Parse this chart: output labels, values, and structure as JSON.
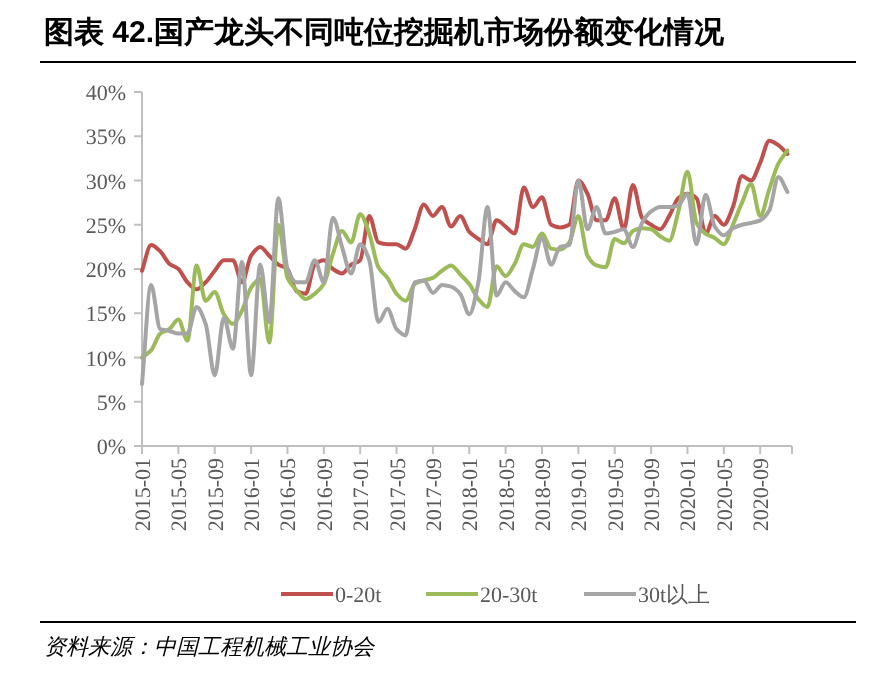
{
  "chart_data": {
    "type": "line",
    "title": "图表 42.国产龙头不同吨位挖掘机市场份额变化情况",
    "categories": [
      "2015-01",
      null,
      null,
      null,
      "2015-05",
      null,
      null,
      null,
      "2015-09",
      null,
      null,
      null,
      "2016-01",
      null,
      null,
      null,
      "2016-05",
      null,
      null,
      null,
      "2016-09",
      null,
      null,
      null,
      "2017-01",
      null,
      null,
      null,
      "2017-05",
      null,
      null,
      null,
      "2017-09",
      null,
      null,
      null,
      "2018-01",
      null,
      null,
      null,
      "2018-05",
      null,
      null,
      null,
      "2018-09",
      null,
      null,
      null,
      "2019-01",
      null,
      null,
      null,
      "2019-05",
      null,
      null,
      null,
      "2019-09",
      null,
      null,
      null,
      "2020-01",
      null,
      null,
      null,
      "2020-05",
      null,
      null,
      null,
      "2020-09",
      null,
      null,
      null
    ],
    "series": [
      {
        "name": "0-20t",
        "color": "#c0504d",
        "values": [
          19.8,
          22.7,
          22,
          20.6,
          20,
          18.5,
          17.7,
          18.5,
          19.8,
          21,
          21,
          18.5,
          21.5,
          22.5,
          21.5,
          20.5,
          20,
          17.5,
          17.2,
          20.5,
          21,
          20,
          19.5,
          20.5,
          21,
          26,
          23,
          22.8,
          22.8,
          22.3,
          24.5,
          27.3,
          26,
          27,
          24.8,
          26,
          24.2,
          23.4,
          22.8,
          25.5,
          24.8,
          24,
          29.2,
          27,
          28.1,
          25,
          24.7,
          25,
          30,
          28.5,
          25.5,
          25.5,
          28,
          24.5,
          29.5,
          25.8,
          25,
          24.5,
          26,
          28,
          28.5,
          28,
          24,
          26,
          25,
          27,
          30.5,
          30,
          32,
          34.5,
          34,
          33
        ]
      },
      {
        "name": "20-30t",
        "color": "#9bbb59",
        "values": [
          10,
          10.8,
          12.7,
          13.2,
          14.3,
          11.9,
          20.4,
          16.4,
          17.4,
          14.9,
          13.8,
          15.3,
          17.9,
          18.9,
          11.7,
          25,
          19,
          17.6,
          16.6,
          17.2,
          18.3,
          21.7,
          24.3,
          23,
          26.2,
          24,
          20.2,
          19,
          17.2,
          16.4,
          18.3,
          18.7,
          19,
          19.8,
          20.4,
          19.4,
          18.3,
          16.6,
          15.7,
          20.3,
          19.2,
          20.6,
          22.8,
          22.5,
          24,
          22.3,
          22.2,
          23,
          26,
          21.5,
          20.4,
          20.2,
          23.4,
          22.9,
          24.3,
          24.6,
          24.5,
          23.7,
          23.2,
          26.5,
          31,
          25.2,
          24,
          23.5,
          22.8,
          25,
          27.5,
          29.6,
          26,
          29,
          31.9,
          33.4
        ]
      },
      {
        "name": "30t以上",
        "color": "#a5a5a5",
        "values": [
          7,
          18.2,
          13.2,
          13,
          12.7,
          12.7,
          15.7,
          13.8,
          8,
          14.5,
          11,
          20.8,
          8,
          20.5,
          14,
          28,
          20,
          18.5,
          18.5,
          21,
          18.5,
          25.8,
          22.5,
          19.5,
          22.8,
          21,
          14,
          15.5,
          13.2,
          12.5,
          18.5,
          18.7,
          17.3,
          18.2,
          18,
          17.2,
          14.9,
          18.5,
          27,
          17,
          18.5,
          17.5,
          16.8,
          20,
          23.5,
          20.5,
          22.5,
          22.7,
          30,
          24.5,
          27,
          24,
          24.2,
          24.5,
          22.5,
          25.2,
          26.5,
          27,
          27,
          27.2,
          28.5,
          22.8,
          28.4,
          24.8,
          23.8,
          24.6,
          25,
          25.2,
          25.5,
          26.6,
          30.4,
          28.7
        ]
      }
    ],
    "ylim": [
      0,
      40
    ],
    "yticks": [
      {
        "value": 0,
        "label": "0%"
      },
      {
        "value": 5,
        "label": "5%"
      },
      {
        "value": 10,
        "label": "10%"
      },
      {
        "value": 15,
        "label": "15%"
      },
      {
        "value": 20,
        "label": "20%"
      },
      {
        "value": 25,
        "label": "25%"
      },
      {
        "value": 30,
        "label": "30%"
      },
      {
        "value": 35,
        "label": "35%"
      },
      {
        "value": 40,
        "label": "40%"
      }
    ],
    "legend": "bottom",
    "annotations": [
      "资料来源：中国工程机械工业协会"
    ]
  }
}
